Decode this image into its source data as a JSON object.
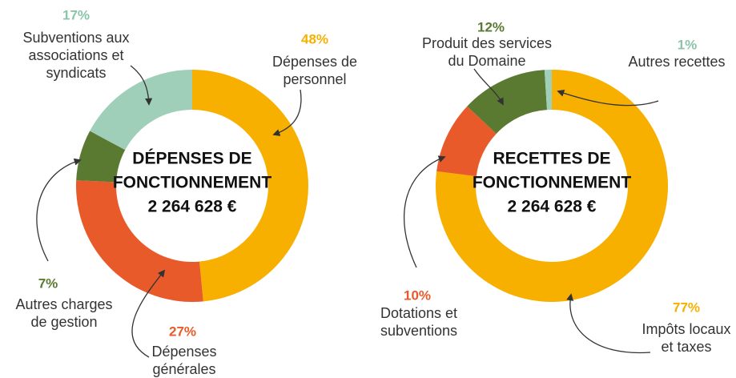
{
  "chart_data": [
    {
      "type": "pie",
      "title": [
        "DÉPENSES DE",
        "FONCTIONNEMENT"
      ],
      "total": "2 264 628 €",
      "categories": [
        [
          "Dépenses de",
          "personnel"
        ],
        [
          "Dépenses",
          "générales"
        ],
        [
          "Autres charges",
          "de gestion"
        ],
        [
          "Subventions aux",
          "associations et",
          "syndicats"
        ]
      ],
      "values": [
        48,
        27,
        7,
        17
      ],
      "value_labels": [
        "48%",
        "27%",
        "7%",
        "17%"
      ],
      "colors": [
        "#f7b000",
        "#e85a2a",
        "#5a7a32",
        "#9fcfb8"
      ]
    },
    {
      "type": "pie",
      "title": [
        "RECETTES DE",
        "FONCTIONNEMENT"
      ],
      "total": "2 264 628 €",
      "categories": [
        [
          "Impôts locaux",
          "et taxes"
        ],
        [
          "Dotations et",
          "subventions"
        ],
        [
          "Produit des services",
          "du Domaine"
        ],
        [
          "Autres recettes"
        ]
      ],
      "values": [
        77,
        10,
        12,
        1
      ],
      "value_labels": [
        "77%",
        "10%",
        "12%",
        "1%"
      ],
      "colors": [
        "#f7b000",
        "#e85a2a",
        "#5a7a32",
        "#9fcfb8"
      ]
    }
  ]
}
